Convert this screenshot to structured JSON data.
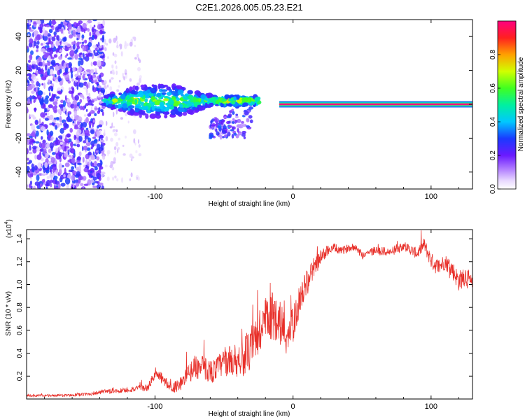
{
  "figure_title": "C2E1.2026.005.05.23.E21",
  "chart_data": [
    {
      "type": "heatmap",
      "name": "spectrogram",
      "xlabel": "Height of straight line (km)",
      "ylabel": "Frequency (Hz)",
      "xlim": [
        -193,
        130
      ],
      "ylim": [
        -50,
        50
      ],
      "xticks": [
        -100,
        0,
        100
      ],
      "xtick_labels": [
        "-100",
        "0",
        "100"
      ],
      "yticks": [
        -40,
        -20,
        0,
        20,
        40
      ],
      "ytick_labels": [
        "-40",
        "-20",
        "0",
        "20",
        "40"
      ],
      "colorbar": {
        "label": "Normalized spectral amplitude",
        "range": [
          0,
          1
        ],
        "ticks": [
          0,
          0.2,
          0.4,
          0.6,
          0.8
        ],
        "tick_labels": [
          "0.0",
          "0.2",
          "0.4",
          "0.6",
          "0.8"
        ]
      },
      "regions": [
        {
          "desc": "noise",
          "x": [
            -193,
            -137
          ],
          "freq": [
            -50,
            50
          ],
          "amplitude": 0.08
        },
        {
          "desc": "sparse noise",
          "x": [
            -137,
            -110
          ],
          "freq": [
            -45,
            40
          ],
          "amplitude": 0.05
        },
        {
          "desc": "signal onset",
          "x": [
            -137,
            -25
          ],
          "freq_center": 2,
          "spread": 8,
          "amplitude": 0.35
        },
        {
          "desc": "scatter lobe",
          "x": [
            -60,
            -30
          ],
          "freq": [
            -20,
            5
          ],
          "amplitude": 0.15
        },
        {
          "desc": "steady carrier",
          "x": [
            -10,
            130
          ],
          "freq_center": 0,
          "amplitude": 1.0
        }
      ]
    },
    {
      "type": "line",
      "name": "snr",
      "xlabel": "Height of straight line (km)",
      "ylabel": "SNR (10 * v/v)",
      "y_scale_label": "(x10",
      "y_scale_exponent": "4",
      "xlim": [
        -193,
        130
      ],
      "ylim": [
        0,
        14800
      ],
      "xticks": [
        -100,
        0,
        100
      ],
      "xtick_labels": [
        "-100",
        "0",
        "100"
      ],
      "yticks": [
        2000,
        4000,
        6000,
        8000,
        10000,
        12000,
        14000
      ],
      "ytick_labels": [
        "0.2",
        "0.4",
        "0.6",
        "0.8",
        "1.0",
        "1.2",
        "1.4"
      ],
      "series": [
        {
          "name": "SNR",
          "color": "#e8302a",
          "x": [
            -193,
            -170,
            -150,
            -138,
            -120,
            -105,
            -100,
            -95,
            -88,
            -80,
            -72,
            -65,
            -58,
            -50,
            -42,
            -36,
            -30,
            -25,
            -20,
            -15,
            -10,
            -5,
            0,
            5,
            10,
            15,
            20,
            25,
            30,
            35,
            40,
            45,
            50,
            60,
            70,
            80,
            90,
            95,
            100,
            105,
            110,
            115,
            120,
            125,
            130
          ],
          "values": [
            300,
            300,
            400,
            600,
            800,
            1000,
            2200,
            1800,
            900,
            1500,
            2800,
            2700,
            2400,
            3200,
            3400,
            3700,
            4200,
            5800,
            6600,
            7200,
            7100,
            5500,
            6400,
            8800,
            10200,
            11500,
            12300,
            13000,
            13200,
            12900,
            13200,
            13300,
            12600,
            13000,
            12800,
            13400,
            12700,
            13500,
            12100,
            11500,
            12000,
            11400,
            10300,
            10800,
            9800
          ],
          "noise": [
            100,
            100,
            150,
            200,
            250,
            300,
            500,
            500,
            400,
            700,
            1000,
            1100,
            1000,
            1200,
            1500,
            1700,
            1800,
            2500,
            2300,
            2200,
            2000,
            1800,
            1600,
            1300,
            1100,
            900,
            700,
            500,
            400,
            350,
            350,
            300,
            400,
            400,
            400,
            400,
            500,
            600,
            700,
            800,
            700,
            800,
            900,
            900,
            900
          ]
        }
      ]
    }
  ]
}
